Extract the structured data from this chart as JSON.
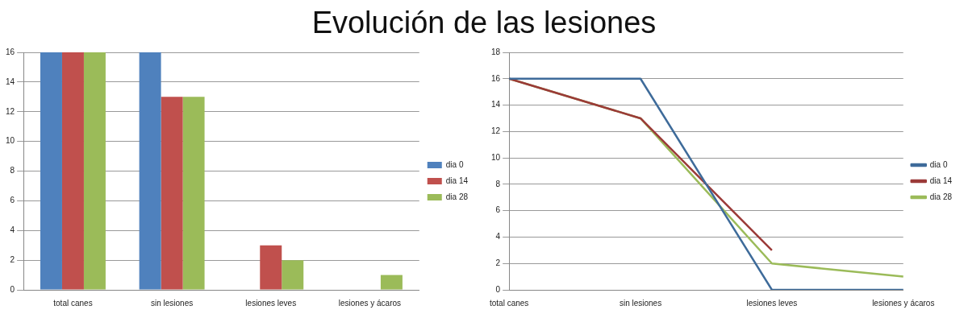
{
  "chart_data": [
    {
      "type": "bar",
      "title": "Evolución de las lesiones",
      "categories": [
        "total canes",
        "sin lesiones",
        "lesiones leves",
        "lesiones y ácaros"
      ],
      "series": [
        {
          "name": "dia 0",
          "color": "#4f81bd",
          "values": [
            16,
            16,
            0,
            0
          ]
        },
        {
          "name": "dia 14",
          "color": "#c0504d",
          "values": [
            16,
            13,
            3,
            0
          ]
        },
        {
          "name": "dia 28",
          "color": "#9bbb59",
          "values": [
            16,
            13,
            2,
            1
          ]
        }
      ],
      "ylim": [
        0,
        16
      ],
      "yticks": [
        0,
        2,
        4,
        6,
        8,
        10,
        12,
        14,
        16
      ],
      "grid": "y",
      "legend": "right"
    },
    {
      "type": "line",
      "categories": [
        "total canes",
        "sin lesiones",
        "lesiones leves",
        "lesiones y ácaros"
      ],
      "series": [
        {
          "name": "dia 0",
          "color": "#3e6b9a",
          "values": [
            16,
            16,
            0,
            0
          ]
        },
        {
          "name": "dia 14",
          "color": "#9b3a38",
          "values": [
            16,
            13,
            3,
            null
          ]
        },
        {
          "name": "dia 28",
          "color": "#9bbb59",
          "values": [
            16,
            13,
            2,
            1
          ]
        }
      ],
      "ylim": [
        0,
        18
      ],
      "yticks": [
        0,
        2,
        4,
        6,
        8,
        10,
        12,
        14,
        16,
        18
      ],
      "grid": "y",
      "legend": "right",
      "marker": "none"
    }
  ]
}
